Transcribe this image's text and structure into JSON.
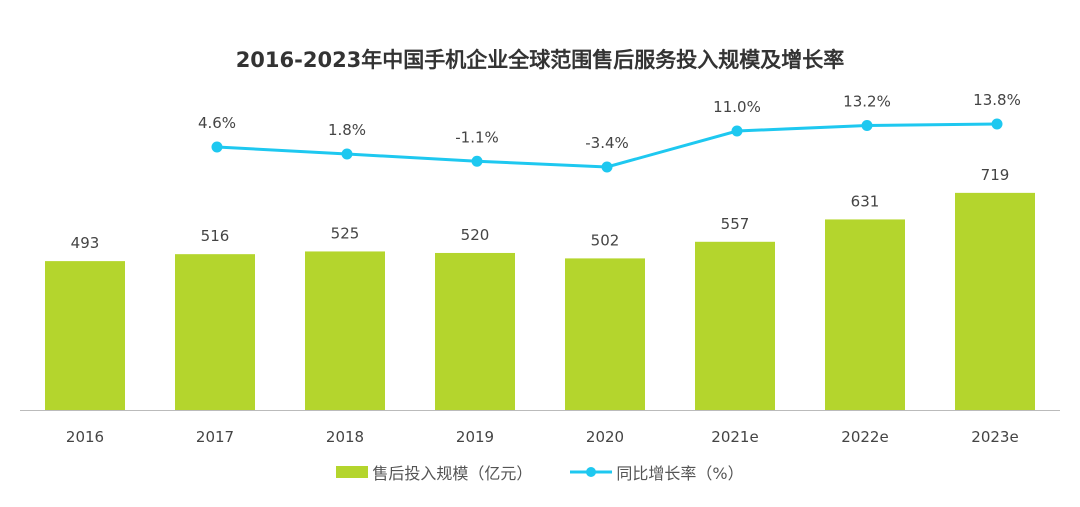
{
  "chart_data": {
    "type": "bar+line",
    "title": "2016-2023年中国手机企业全球范围售后服务投入规模及增长率",
    "categories": [
      "2016",
      "2017",
      "2018",
      "2019",
      "2020",
      "2021e",
      "2022e",
      "2023e"
    ],
    "series": [
      {
        "name": "售后投入规模（亿元）",
        "type": "bar",
        "color": "#b4d52d",
        "values": [
          493,
          516,
          525,
          520,
          502,
          557,
          631,
          719
        ]
      },
      {
        "name": "同比增长率（%）",
        "type": "line",
        "color": "#1ec8f0",
        "values": [
          null,
          4.6,
          1.8,
          -1.1,
          -3.4,
          11.0,
          13.2,
          13.8
        ],
        "labels": [
          "",
          "4.6%",
          "1.8%",
          "-1.1%",
          "-3.4%",
          "11.0%",
          "13.2%",
          "13.8%"
        ]
      }
    ],
    "legend": "bottom",
    "grid": false
  }
}
